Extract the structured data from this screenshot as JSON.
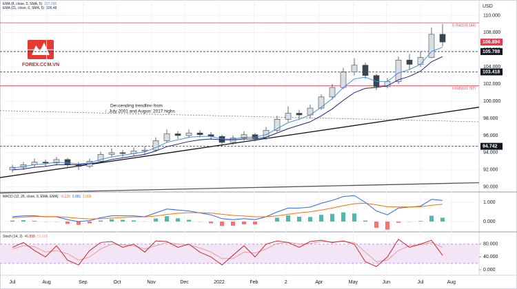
{
  "chart_data": {
    "type": "candlestick",
    "currency": "USD",
    "watermark": "FOREX.COM.VN",
    "annotation": [
      "Descending trendline from",
      "July 2001 and August 2017 highs"
    ],
    "months": [
      {
        "label": "Jul",
        "at": 0
      },
      {
        "label": "Aug",
        "at": 3.1
      },
      {
        "label": "Sep",
        "at": 6.4
      },
      {
        "label": "Oct",
        "at": 9.5
      },
      {
        "label": "Nov",
        "at": 12.6
      },
      {
        "label": "Dec",
        "at": 15.6
      },
      {
        "label": "2022",
        "at": 18.75
      },
      {
        "label": "Feb",
        "at": 21.9
      },
      {
        "label": "2",
        "at": 24.8
      },
      {
        "label": "Apr",
        "at": 27.8
      },
      {
        "label": "May",
        "at": 30.9
      },
      {
        "label": "Jun",
        "at": 33.9
      },
      {
        "label": "Jul",
        "at": 37
      },
      {
        "label": "Aug",
        "at": 39.8
      }
    ],
    "open": [
      92.0,
      92.3,
      92.6,
      92.9,
      92.8,
      93.2,
      92.6,
      92.4,
      93.0,
      93.8,
      94.0,
      93.9,
      94.2,
      94.3,
      95.4,
      96.2,
      96.0,
      96.3,
      96.1,
      95.9,
      95.2,
      95.7,
      96.1,
      95.7,
      96.6,
      97.9,
      98.6,
      98.4,
      99.2,
      100.5,
      101.6,
      103.4,
      104.2,
      103.0,
      101.7,
      102.3,
      104.8,
      104.3,
      105.1,
      107.8
    ],
    "high": [
      92.6,
      92.9,
      93.3,
      93.2,
      93.5,
      93.4,
      92.9,
      93.3,
      94.1,
      94.5,
      94.3,
      94.6,
      94.7,
      95.8,
      96.7,
      96.5,
      96.7,
      96.6,
      96.4,
      96.1,
      96.0,
      96.5,
      96.3,
      97.0,
      98.3,
      99.4,
      99.0,
      99.6,
      100.8,
      102.0,
      103.9,
      105.0,
      104.5,
      103.2,
      102.7,
      105.2,
      105.5,
      105.8,
      108.6,
      109.0
    ],
    "low": [
      91.7,
      92.0,
      92.3,
      92.4,
      92.5,
      92.3,
      92.0,
      92.2,
      92.8,
      93.5,
      93.5,
      93.6,
      93.8,
      94.1,
      95.2,
      95.6,
      95.7,
      95.8,
      95.5,
      94.7,
      94.9,
      95.4,
      95.3,
      95.5,
      96.4,
      97.6,
      97.8,
      98.0,
      99.0,
      100.2,
      101.4,
      103.0,
      102.6,
      101.3,
      101.5,
      102.0,
      103.7,
      104.0,
      105.0,
      106.4
    ],
    "close": [
      92.3,
      92.6,
      92.9,
      92.8,
      93.2,
      92.6,
      92.4,
      93.0,
      93.8,
      94.0,
      93.9,
      94.2,
      94.3,
      95.4,
      96.2,
      96.0,
      96.3,
      96.1,
      95.9,
      95.2,
      95.7,
      96.1,
      95.7,
      96.6,
      97.9,
      98.6,
      98.4,
      99.2,
      100.5,
      101.6,
      103.4,
      104.2,
      103.0,
      101.7,
      102.3,
      104.8,
      104.3,
      105.1,
      107.8,
      106.9
    ],
    "up_color": "#d9dee3",
    "down_color": "#37474f",
    "series": [
      {
        "name": "EMA (8, close, 0, SMA, 5)",
        "legend_value": 107.295,
        "color": "#4a90e2",
        "values": [
          92.2,
          92.4,
          92.6,
          92.7,
          92.9,
          92.8,
          92.7,
          92.8,
          93.2,
          93.5,
          93.7,
          93.9,
          94.1,
          94.6,
          95.2,
          95.5,
          95.8,
          95.9,
          95.9,
          95.6,
          95.6,
          95.8,
          95.8,
          96.1,
          96.8,
          97.5,
          97.9,
          98.4,
          99.3,
          100.3,
          101.6,
          102.6,
          102.8,
          102.3,
          102.3,
          103.3,
          103.7,
          104.3,
          105.8,
          106.3
        ]
      },
      {
        "name": "EMA (21, close, 0, SMA, 5)",
        "legend_value": 106.48,
        "color": "#1a237e",
        "values": [
          92.0,
          92.1,
          92.3,
          92.4,
          92.6,
          92.6,
          92.6,
          92.7,
          92.9,
          93.2,
          93.4,
          93.6,
          93.8,
          94.2,
          94.7,
          95.0,
          95.3,
          95.5,
          95.6,
          95.5,
          95.5,
          95.6,
          95.6,
          95.8,
          96.3,
          96.8,
          97.2,
          97.6,
          98.3,
          99.1,
          100.1,
          101.0,
          101.5,
          101.6,
          101.8,
          102.5,
          102.9,
          103.5,
          104.6,
          105.2
        ]
      }
    ],
    "ylim": [
      89.5,
      111.8
    ],
    "yticks": [
      {
        "value": 90,
        "label": "90.000"
      },
      {
        "value": 92,
        "label": "92.000"
      },
      {
        "value": 94,
        "label": "94.000"
      },
      {
        "value": 96,
        "label": "96.000"
      },
      {
        "value": 98,
        "label": "98.000"
      },
      {
        "value": 100,
        "label": "100.000"
      },
      {
        "value": 102,
        "label": "102.000"
      },
      {
        "value": 104,
        "label": "104.000"
      },
      {
        "value": 106,
        "label": "106.000"
      },
      {
        "value": 108,
        "label": "108.000"
      },
      {
        "value": 110,
        "label": "110.000"
      }
    ],
    "fib_levels": [
      {
        "value": 109.144,
        "label": "0.764(109.144)"
      },
      {
        "value": 101.797,
        "label": "0.618(101.797)"
      }
    ],
    "fib_color": "#f23645",
    "last_price": 106.894,
    "price_labels": [
      105.788,
      103.418,
      94.742
    ],
    "trendlines": [
      {
        "start": 98.9,
        "end": 97.6,
        "color": "#777",
        "dash": true
      },
      {
        "start": 91.1,
        "end": 99.3,
        "color": "#111",
        "dash": false
      },
      {
        "start": 89.3,
        "end": 90.5,
        "color": "#555",
        "dash": false
      }
    ],
    "macd": {
      "label": "MACD (12, 26, close, 9, EMA, EMA)",
      "readout": [
        -0.129,
        0.881,
        1.009
      ],
      "ylim": [
        -0.5,
        1.5
      ],
      "yticks": [
        {
          "value": 0,
          "label": "0.000"
        },
        {
          "value": 1,
          "label": "1.000"
        }
      ],
      "macd": {
        "color": "#2962ff",
        "values": [
          0.25,
          0.3,
          0.3,
          0.25,
          0.25,
          0.1,
          0.0,
          0.05,
          0.2,
          0.3,
          0.3,
          0.3,
          0.25,
          0.45,
          0.65,
          0.6,
          0.55,
          0.45,
          0.35,
          0.15,
          0.1,
          0.15,
          0.1,
          0.25,
          0.5,
          0.7,
          0.7,
          0.75,
          0.95,
          1.1,
          1.3,
          1.35,
          1.0,
          0.55,
          0.35,
          0.7,
          0.75,
          0.8,
          1.15,
          1.1
        ]
      },
      "signal": {
        "color": "#ff6d00",
        "values": [
          0.2,
          0.23,
          0.26,
          0.26,
          0.26,
          0.22,
          0.17,
          0.14,
          0.15,
          0.18,
          0.21,
          0.24,
          0.24,
          0.29,
          0.37,
          0.43,
          0.46,
          0.46,
          0.44,
          0.38,
          0.32,
          0.29,
          0.25,
          0.25,
          0.3,
          0.38,
          0.45,
          0.51,
          0.6,
          0.7,
          0.82,
          0.93,
          0.95,
          0.87,
          0.77,
          0.76,
          0.76,
          0.77,
          0.85,
          0.9
        ]
      },
      "histogram": {
        "pos_color": "#26a69a",
        "neg_color": "#ef5350",
        "values": [
          0.05,
          0.07,
          0.04,
          -0.01,
          -0.01,
          -0.12,
          -0.17,
          -0.09,
          0.05,
          0.12,
          0.09,
          0.06,
          0.01,
          0.16,
          0.28,
          0.17,
          0.09,
          -0.01,
          -0.09,
          -0.23,
          -0.22,
          -0.14,
          -0.15,
          0.0,
          0.2,
          0.32,
          0.25,
          0.24,
          0.35,
          0.4,
          0.48,
          0.42,
          0.05,
          -0.32,
          -0.42,
          -0.06,
          -0.01,
          0.03,
          0.3,
          0.2
        ]
      }
    },
    "stoch": {
      "label": "Stoch (14, 3)",
      "readout": [
        46.898,
        53.258
      ],
      "ylim": [
        -15,
        116
      ],
      "yticks": [
        {
          "value": 0,
          "label": "0.000"
        },
        {
          "value": 40,
          "label": "40.000"
        },
        {
          "value": 80,
          "label": "80.000"
        }
      ],
      "band": [
        20,
        80
      ],
      "band_color": "#f3e5f5",
      "k": {
        "color": "#c62828",
        "values": [
          70,
          85,
          60,
          40,
          75,
          30,
          15,
          60,
          85,
          88,
          70,
          80,
          55,
          90,
          88,
          70,
          80,
          55,
          40,
          15,
          45,
          75,
          40,
          80,
          90,
          85,
          70,
          88,
          92,
          85,
          90,
          80,
          25,
          10,
          40,
          95,
          70,
          80,
          92,
          45
        ]
      },
      "d": {
        "color": "#ef9a9a",
        "values": [
          65,
          75,
          72,
          55,
          60,
          50,
          30,
          40,
          65,
          80,
          78,
          75,
          65,
          75,
          85,
          80,
          78,
          68,
          55,
          35,
          35,
          55,
          52,
          65,
          82,
          86,
          80,
          82,
          88,
          87,
          88,
          85,
          55,
          25,
          30,
          60,
          75,
          78,
          85,
          70
        ]
      }
    }
  }
}
